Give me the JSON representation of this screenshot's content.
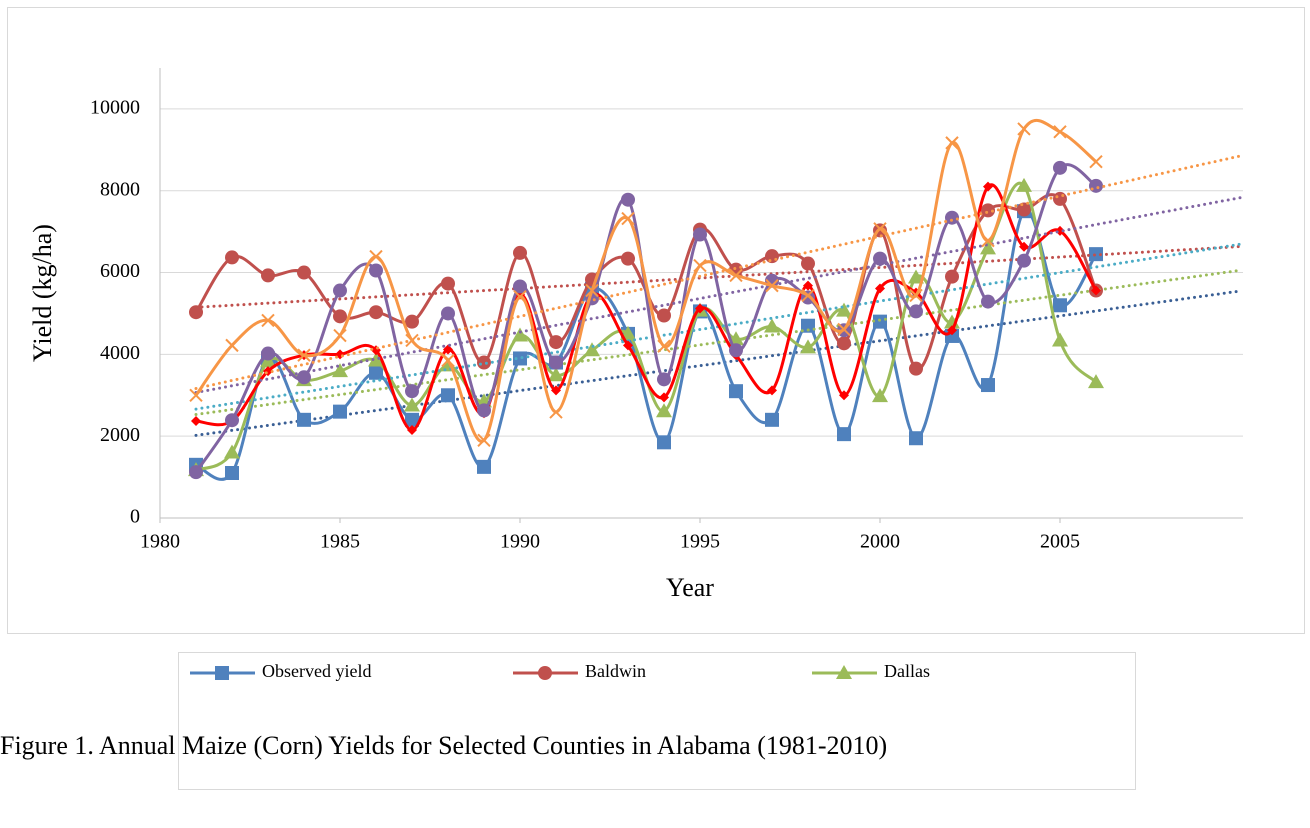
{
  "chart_data": {
    "type": "line",
    "caption": "Figure 1. Annual Maize (Corn) Yields for Selected Counties in Alabama (1981-2010)",
    "x_label": "Year",
    "y_label": "Yield (kg/ha)",
    "x": [
      1981,
      1982,
      1983,
      1984,
      1985,
      1986,
      1987,
      1988,
      1989,
      1990,
      1991,
      1992,
      1993,
      1994,
      1995,
      1996,
      1997,
      1998,
      1999,
      2000,
      2001,
      2002,
      2003,
      2004,
      2005,
      2006
    ],
    "series": [
      {
        "name": "Observed yield",
        "color": "#4f81bd",
        "marker": "square",
        "trend_color": "#3a5f95",
        "values": [
          1300,
          1100,
          3900,
          2400,
          2600,
          3550,
          2400,
          3000,
          1250,
          3900,
          3800,
          5600,
          4500,
          1850,
          5050,
          3100,
          2400,
          4700,
          2050,
          4800,
          1950,
          4450,
          3250,
          7500,
          5200,
          6450
        ]
      },
      {
        "name": "Baldwin",
        "color": "#c0504d",
        "marker": "circle",
        "trend_color": "#c0504d",
        "values": [
          5030,
          6370,
          5930,
          6000,
          4930,
          5030,
          4800,
          5730,
          3800,
          6480,
          4300,
          5830,
          6340,
          4950,
          7050,
          6070,
          6400,
          6220,
          4270,
          7030,
          3650,
          5900,
          7520,
          7540,
          7800,
          5560
        ]
      },
      {
        "name": "Dallas",
        "color": "#9bbb59",
        "marker": "triangle",
        "trend_color": "#9bbb59",
        "values": [
          1170,
          1600,
          3830,
          3370,
          3590,
          3850,
          2750,
          3730,
          2850,
          4460,
          3490,
          4100,
          4500,
          2610,
          5070,
          4370,
          4680,
          4170,
          5070,
          2980,
          5880,
          4780,
          6590,
          8120,
          4340,
          3320
        ]
      },
      {
        "color": "#ff0000",
        "marker": "diamond",
        "trend_color": "#4bacc6",
        "values": [
          2370,
          2370,
          3590,
          3980,
          4000,
          4100,
          2150,
          4120,
          2560,
          5460,
          3120,
          5460,
          4220,
          2950,
          5120,
          3980,
          3120,
          5680,
          3000,
          5610,
          5510,
          4590,
          8100,
          6630,
          7020,
          5560
        ]
      },
      {
        "color": "#8064a2",
        "marker": "circle",
        "trend_color": "#8064a2",
        "values": [
          1120,
          2390,
          4020,
          3440,
          5560,
          6050,
          3100,
          5000,
          2630,
          5660,
          3800,
          5370,
          7780,
          3390,
          6930,
          4100,
          5800,
          5390,
          4590,
          6340,
          5050,
          7340,
          5290,
          6290,
          8560,
          8120
        ]
      },
      {
        "color": "#f79646",
        "marker": "x",
        "trend_color": "#f79646",
        "values": [
          3000,
          4220,
          4830,
          3980,
          4460,
          6390,
          4340,
          3850,
          1900,
          5410,
          2590,
          5560,
          7320,
          4200,
          6170,
          5930,
          5680,
          5440,
          4610,
          7070,
          5440,
          9170,
          6780,
          9510,
          9440,
          8710
        ]
      }
    ],
    "xlim": [
      1980,
      2010
    ],
    "xticks": [
      1980,
      1985,
      1990,
      1995,
      2000,
      2005
    ],
    "ylim": [
      0,
      11000
    ],
    "yticks": [
      0,
      2000,
      4000,
      6000,
      8000,
      10000
    ],
    "grid": true,
    "smooth": true,
    "trendline": true,
    "legend": "bottom"
  }
}
